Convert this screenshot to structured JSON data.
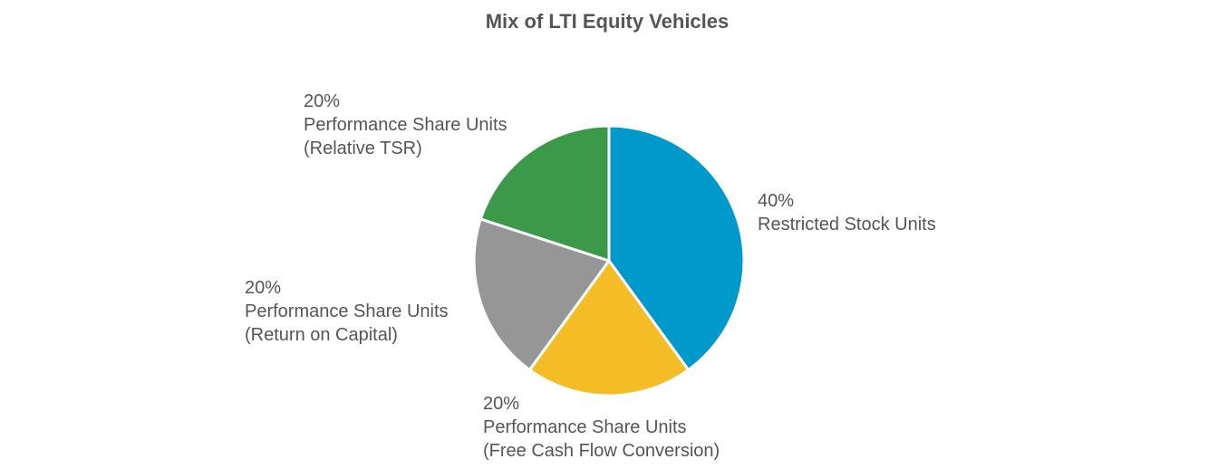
{
  "chart_data": {
    "type": "pie",
    "title": "Mix of LTI Equity Vehicles",
    "slices": [
      {
        "label": "Restricted Stock Units",
        "sublabel": "",
        "value": 40,
        "value_label": "40%",
        "color": "#0099CC"
      },
      {
        "label": "Performance Share Units",
        "sublabel": "(Free Cash Flow Conversion)",
        "value": 20,
        "value_label": "20%",
        "color": "#F4BD25"
      },
      {
        "label": "Performance Share Units",
        "sublabel": "(Return on Capital)",
        "value": 20,
        "value_label": "20%",
        "color": "#969696"
      },
      {
        "label": "Performance Share Units",
        "sublabel": "(Relative TSR)",
        "value": 20,
        "value_label": "20%",
        "color": "#3B9949"
      }
    ],
    "start_angle": "12 o'clock",
    "direction": "clockwise",
    "slice_border_color": "#ffffff"
  }
}
